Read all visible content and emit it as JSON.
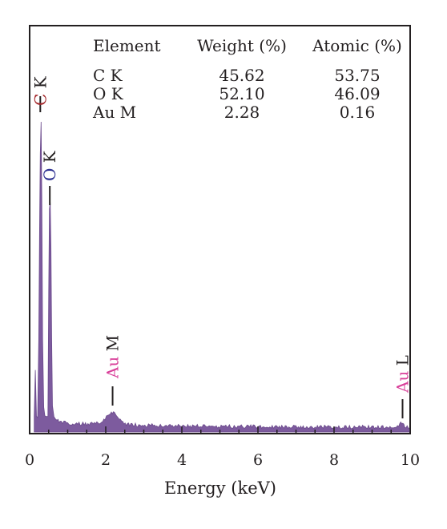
{
  "chart_data": {
    "type": "area",
    "title": "",
    "xlabel": "Energy (keV)",
    "ylabel": "",
    "xlim": [
      0,
      10
    ],
    "ylim": [
      0,
      1
    ],
    "x_ticks": [
      "0",
      "2",
      "4",
      "6",
      "8",
      "10"
    ],
    "grid": false,
    "series_color": "#7d5b9e",
    "x": [
      0.12,
      0.15,
      0.18,
      0.21,
      0.24,
      0.26,
      0.28,
      0.3,
      0.32,
      0.34,
      0.37,
      0.4,
      0.44,
      0.48,
      0.5,
      0.52,
      0.54,
      0.56,
      0.58,
      0.6,
      0.64,
      0.68,
      0.72,
      0.8,
      0.9,
      1.0,
      1.2,
      1.4,
      1.6,
      1.8,
      1.95,
      2.05,
      2.12,
      2.2,
      2.28,
      2.35,
      2.45,
      2.6,
      2.9,
      3.5,
      4.0,
      5.0,
      6.0,
      7.0,
      8.0,
      9.0,
      9.5,
      9.7,
      9.78,
      9.86,
      9.95,
      10.0
    ],
    "y": [
      0.05,
      0.2,
      0.05,
      0.04,
      0.3,
      0.65,
      0.9,
      1.0,
      0.75,
      0.3,
      0.08,
      0.05,
      0.04,
      0.05,
      0.45,
      0.72,
      0.74,
      0.6,
      0.3,
      0.08,
      0.04,
      0.035,
      0.03,
      0.028,
      0.025,
      0.022,
      0.02,
      0.02,
      0.02,
      0.022,
      0.03,
      0.045,
      0.055,
      0.06,
      0.05,
      0.035,
      0.022,
      0.018,
      0.016,
      0.014,
      0.013,
      0.012,
      0.011,
      0.011,
      0.01,
      0.01,
      0.01,
      0.012,
      0.025,
      0.014,
      0.01,
      0.01
    ],
    "peak_labels": [
      {
        "element": "C",
        "line": "K",
        "x": 0.28,
        "color": "#a3262a"
      },
      {
        "element": "O",
        "line": "K",
        "x": 0.53,
        "color": "#2e3192"
      },
      {
        "element": "Au",
        "line": "M",
        "x": 2.18,
        "color": "#d9419a"
      },
      {
        "element": "Au",
        "line": "L",
        "x": 9.8,
        "color": "#d9419a"
      }
    ],
    "table": {
      "headers": [
        "Element",
        "Weight (%)",
        "Atomic (%)"
      ],
      "rows": [
        [
          "C K",
          "45.62",
          "53.75"
        ],
        [
          "O K",
          "52.10",
          "46.09"
        ],
        [
          "Au M",
          "2.28",
          "0.16"
        ]
      ]
    }
  }
}
